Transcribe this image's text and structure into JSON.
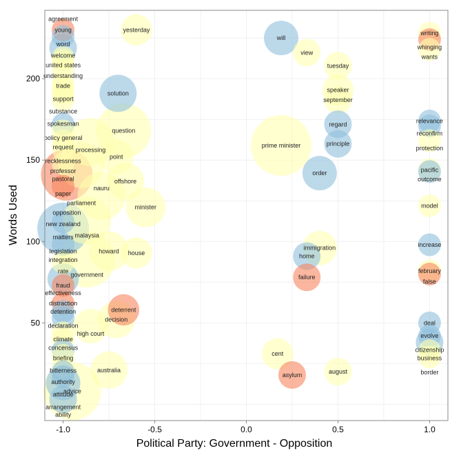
{
  "chart_data": {
    "type": "scatter",
    "xlabel": "Political Party: Government - Opposition",
    "ylabel": "Words Used",
    "xlim": [
      -1.1,
      1.1
    ],
    "ylim": [
      -10,
      242
    ],
    "xticks": [
      -1.0,
      -0.5,
      0.0,
      0.5,
      1.0
    ],
    "xtick_labels": [
      "-1.0",
      "-0.5",
      "0.0",
      "0.5",
      "1.0"
    ],
    "yticks": [
      50,
      100,
      150,
      200
    ],
    "ytick_labels": [
      "50",
      "100",
      "150",
      "200"
    ],
    "grid": true,
    "colors": {
      "blue": "#8fbfdc",
      "yellow": "#ffffb0",
      "red": "#f6865f"
    },
    "points": [
      {
        "label": "yesterday",
        "x": -0.6,
        "y": 230,
        "size": 3,
        "color": "yellow"
      },
      {
        "label": "will",
        "x": 0.19,
        "y": 225,
        "size": 4,
        "color": "blue"
      },
      {
        "label": "view",
        "x": 0.33,
        "y": 216,
        "size": 2,
        "color": "yellow"
      },
      {
        "label": "tuesday",
        "x": 0.5,
        "y": 208,
        "size": 2,
        "color": "yellow"
      },
      {
        "label": "solution",
        "x": -0.7,
        "y": 191,
        "size": 5,
        "color": "blue"
      },
      {
        "label": "speaker",
        "x": 0.5,
        "y": 193,
        "size": 3,
        "color": "yellow"
      },
      {
        "label": "september",
        "x": 0.5,
        "y": 187,
        "size": 2,
        "color": "yellow"
      },
      {
        "label": "question",
        "x": -0.67,
        "y": 168,
        "size": 14,
        "color": "yellow"
      },
      {
        "label": "regard",
        "x": 0.5,
        "y": 172,
        "size": 2,
        "color": "blue"
      },
      {
        "label": "processing",
        "x": -0.85,
        "y": 161,
        "size": 10,
        "color": "yellow"
      },
      {
        "label": "prime minister",
        "x": 0.19,
        "y": 159,
        "size": 18,
        "color": "yellow"
      },
      {
        "label": "principle",
        "x": 0.5,
        "y": 160,
        "size": 2,
        "color": "blue"
      },
      {
        "label": "point",
        "x": -0.71,
        "y": 152,
        "size": 4,
        "color": "yellow"
      },
      {
        "label": "parliament",
        "x": -0.9,
        "y": 147,
        "size": 9,
        "color": "yellow"
      },
      {
        "label": "order",
        "x": 0.4,
        "y": 142,
        "size": 4,
        "color": "blue"
      },
      {
        "label": "offshore",
        "x": -0.66,
        "y": 137,
        "size": 5,
        "color": "yellow"
      },
      {
        "label": "nauru",
        "x": -0.79,
        "y": 128,
        "size": 10,
        "color": "yellow"
      },
      {
        "label": "minister",
        "x": -0.55,
        "y": 121,
        "size": 6,
        "color": "yellow"
      },
      {
        "label": "malaysia",
        "x": -0.87,
        "y": 113,
        "size": 10,
        "color": "yellow"
      },
      {
        "label": "immigration",
        "x": 0.4,
        "y": 96,
        "size": 4,
        "color": "yellow"
      },
      {
        "label": "howard",
        "x": -0.75,
        "y": 94,
        "size": 6,
        "color": "yellow"
      },
      {
        "label": "house",
        "x": -0.6,
        "y": 93,
        "size": 3,
        "color": "yellow"
      },
      {
        "label": "home",
        "x": 0.33,
        "y": 91,
        "size": 2,
        "color": "blue"
      },
      {
        "label": "government",
        "x": -0.87,
        "y": 89,
        "size": 15,
        "color": "yellow"
      },
      {
        "label": "failure",
        "x": 0.33,
        "y": 78,
        "size": 2,
        "color": "red"
      },
      {
        "label": "deterrent",
        "x": -0.67,
        "y": 58,
        "size": 3,
        "color": "red"
      },
      {
        "label": "decision",
        "x": -0.71,
        "y": 52,
        "size": 5,
        "color": "yellow"
      },
      {
        "label": "high court",
        "x": -0.85,
        "y": 48,
        "size": 4,
        "color": "yellow"
      },
      {
        "label": "cent",
        "x": 0.17,
        "y": 31,
        "size": 3,
        "color": "yellow"
      },
      {
        "label": "australia",
        "x": -0.75,
        "y": 21,
        "size": 5,
        "color": "yellow"
      },
      {
        "label": "asylum",
        "x": 0.25,
        "y": 18,
        "size": 2,
        "color": "red"
      },
      {
        "label": "august",
        "x": 0.5,
        "y": 20,
        "size": 2,
        "color": "yellow"
      },
      {
        "label": "writing",
        "x": 1.0,
        "y": 228,
        "size": 1,
        "color": "yellow"
      },
      {
        "label": "whinging",
        "x": 1.0,
        "y": 224,
        "size": 1,
        "color": "red"
      },
      {
        "label": "wants",
        "x": 1.0,
        "y": 218,
        "size": 1,
        "color": "yellow"
      },
      {
        "label": "relevance",
        "x": 1.0,
        "y": 174,
        "size": 1,
        "color": "blue"
      },
      {
        "label": "reconfirm",
        "x": 1.0,
        "y": 171,
        "size": 1,
        "color": "blue"
      },
      {
        "label": "protection",
        "x": 1.0,
        "y": 162,
        "size": 1,
        "color": "yellow"
      },
      {
        "label": "pacific",
        "x": 1.0,
        "y": 144,
        "size": 1,
        "color": "yellow"
      },
      {
        "label": "outcome",
        "x": 1.0,
        "y": 143,
        "size": 1,
        "color": "blue"
      },
      {
        "label": "model",
        "x": 1.0,
        "y": 122,
        "size": 1,
        "color": "yellow"
      },
      {
        "label": "increase",
        "x": 1.0,
        "y": 98,
        "size": 1,
        "color": "blue"
      },
      {
        "label": "february",
        "x": 1.0,
        "y": 82,
        "size": 1,
        "color": "yellow"
      },
      {
        "label": "false",
        "x": 1.0,
        "y": 80,
        "size": 1,
        "color": "red"
      },
      {
        "label": "deal",
        "x": 1.0,
        "y": 50,
        "size": 1,
        "color": "blue"
      },
      {
        "label": "evolve",
        "x": 1.0,
        "y": 42,
        "size": 1,
        "color": "blue"
      },
      {
        "label": "citizenship",
        "x": 1.0,
        "y": 38,
        "size": 2,
        "color": "blue"
      },
      {
        "label": "business",
        "x": 1.0,
        "y": 33,
        "size": 1,
        "color": "yellow"
      },
      {
        "label": "border",
        "x": 1.0,
        "y": 29,
        "size": 1,
        "color": "yellow"
      },
      {
        "label": "young",
        "x": -1.0,
        "y": 230,
        "size": 1,
        "color": "red"
      },
      {
        "label": "word",
        "x": -1.0,
        "y": 226,
        "size": 1,
        "color": "blue"
      },
      {
        "label": "welcome",
        "x": -1.0,
        "y": 219,
        "size": 2,
        "color": "blue"
      },
      {
        "label": "united states",
        "x": -1.0,
        "y": 213,
        "size": 1,
        "color": "yellow"
      },
      {
        "label": "understanding",
        "x": -1.0,
        "y": 211,
        "size": 1,
        "color": "yellow"
      },
      {
        "label": "trade",
        "x": -1.0,
        "y": 205,
        "size": 1,
        "color": "yellow"
      },
      {
        "label": "support",
        "x": -1.0,
        "y": 197,
        "size": 1,
        "color": "yellow"
      },
      {
        "label": "substance",
        "x": -1.0,
        "y": 194,
        "size": 1,
        "color": "yellow"
      },
      {
        "label": "spokesman",
        "x": -1.0,
        "y": 191,
        "size": 1,
        "color": "yellow"
      },
      {
        "label": "policy general",
        "x": -1.0,
        "y": 187,
        "size": 1,
        "color": "yellow"
      },
      {
        "label": "request",
        "x": -1.0,
        "y": 172,
        "size": 1,
        "color": "blue"
      },
      {
        "label": "recklessness",
        "x": -1.0,
        "y": 168,
        "size": 1,
        "color": "yellow"
      },
      {
        "label": "professor",
        "x": -1.0,
        "y": 162,
        "size": 1,
        "color": "yellow"
      },
      {
        "label": "pastoral",
        "x": -1.0,
        "y": 157,
        "size": 1,
        "color": "yellow"
      },
      {
        "label": "paper",
        "x": -1.0,
        "y": 148,
        "size": 1,
        "color": "yellow"
      },
      {
        "label": "opposition",
        "x": -0.98,
        "y": 141,
        "size": 12,
        "color": "red"
      },
      {
        "label": "new zealand",
        "x": -1.0,
        "y": 134,
        "size": 1,
        "color": "red"
      },
      {
        "label": "matters",
        "x": -1.0,
        "y": 112,
        "size": 1,
        "color": "blue"
      },
      {
        "label": "legislation",
        "x": -1.0,
        "y": 108,
        "size": 12,
        "color": "blue"
      },
      {
        "label": "integration",
        "x": -1.0,
        "y": 98,
        "size": 1,
        "color": "blue"
      },
      {
        "label": "fraud",
        "x": -1.0,
        "y": 87,
        "size": 1,
        "color": "yellow"
      },
      {
        "label": "rate",
        "x": -1.0,
        "y": 77,
        "size": 3,
        "color": "blue"
      },
      {
        "label": "effectiveness",
        "x": -1.0,
        "y": 73,
        "size": 1,
        "color": "red"
      },
      {
        "label": "distraction",
        "x": -1.0,
        "y": 62,
        "size": 1,
        "color": "red"
      },
      {
        "label": "detention",
        "x": -1.0,
        "y": 57,
        "size": 1,
        "color": "blue"
      },
      {
        "label": "declaration",
        "x": -1.0,
        "y": 53,
        "size": 1,
        "color": "blue"
      },
      {
        "label": "concensus",
        "x": -1.0,
        "y": 44,
        "size": 1,
        "color": "yellow"
      },
      {
        "label": "climate",
        "x": -1.0,
        "y": 40,
        "size": 1,
        "color": "yellow"
      },
      {
        "label": "briefing",
        "x": -1.0,
        "y": 33,
        "size": 1,
        "color": "blue"
      },
      {
        "label": "bitterness",
        "x": -1.0,
        "y": 30,
        "size": 1,
        "color": "yellow"
      },
      {
        "label": "authority",
        "x": -1.0,
        "y": 23,
        "size": 1,
        "color": "yellow"
      },
      {
        "label": "attitude",
        "x": -1.0,
        "y": 20,
        "size": 1,
        "color": "blue"
      },
      {
        "label": "arrangement",
        "x": -1.0,
        "y": 17,
        "size": 1,
        "color": "blue"
      },
      {
        "label": "agreement",
        "x": -1.0,
        "y": 13,
        "size": 4,
        "color": "blue"
      },
      {
        "label": "advice",
        "x": -0.95,
        "y": 8,
        "size": 16,
        "color": "yellow"
      },
      {
        "label": "ability",
        "x": -1.0,
        "y": 3,
        "size": 2,
        "color": "blue"
      }
    ]
  }
}
